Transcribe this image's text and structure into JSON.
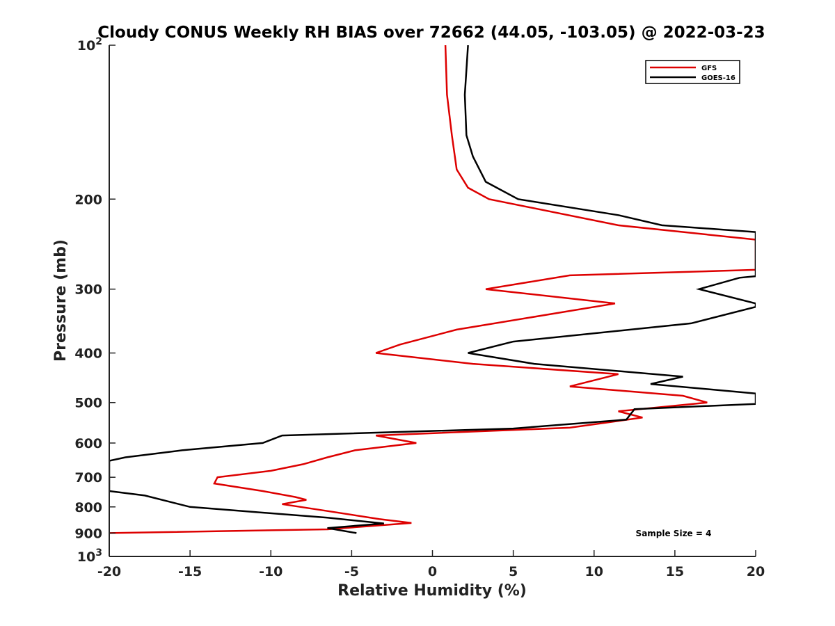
{
  "chart_data": {
    "type": "line",
    "title": "Cloudy CONUS Weekly RH BIAS over 72662 (44.05, -103.05) @ 2022-03-23",
    "xlabel": "Relative Humidity (%)",
    "ylabel": "Pressure (mb)",
    "xlim": [
      -20,
      20
    ],
    "ylim": [
      100,
      1000
    ],
    "y_scale": "log",
    "y_reversed": true,
    "grid": false,
    "legend_position": "top-right",
    "x_ticks": [
      {
        "value": -20,
        "label": "-20"
      },
      {
        "value": -15,
        "label": "-15"
      },
      {
        "value": -10,
        "label": "-10"
      },
      {
        "value": -5,
        "label": "-5"
      },
      {
        "value": 0,
        "label": "0"
      },
      {
        "value": 5,
        "label": "5"
      },
      {
        "value": 10,
        "label": "10"
      },
      {
        "value": 15,
        "label": "15"
      },
      {
        "value": 20,
        "label": "20"
      }
    ],
    "y_ticks": [
      {
        "value": 100,
        "base": "10",
        "exp": "2"
      },
      {
        "value": 200,
        "label": "200"
      },
      {
        "value": 300,
        "label": "300"
      },
      {
        "value": 400,
        "label": "400"
      },
      {
        "value": 500,
        "label": "500"
      },
      {
        "value": 600,
        "label": "600"
      },
      {
        "value": 700,
        "label": "700"
      },
      {
        "value": 800,
        "label": "800"
      },
      {
        "value": 900,
        "label": "900"
      },
      {
        "value": 1000,
        "base": "10",
        "exp": "3"
      }
    ],
    "series": [
      {
        "name": "GFS",
        "color": "#dd0000",
        "points": [
          [
            0.8,
            100
          ],
          [
            0.9,
            125
          ],
          [
            1.2,
            150
          ],
          [
            1.5,
            175
          ],
          [
            2.2,
            190
          ],
          [
            3.5,
            200
          ],
          [
            11.5,
            225
          ],
          [
            20,
            240
          ],
          [
            20,
            275
          ],
          [
            8.5,
            282
          ],
          [
            3.3,
            300
          ],
          [
            11.3,
            320
          ],
          [
            1.5,
            360
          ],
          [
            -2,
            385
          ],
          [
            -3.5,
            400
          ],
          [
            2.5,
            420
          ],
          [
            11.5,
            440
          ],
          [
            8.5,
            465
          ],
          [
            15.5,
            485
          ],
          [
            17,
            500
          ],
          [
            11.5,
            520
          ],
          [
            13,
            535
          ],
          [
            8.5,
            560
          ],
          [
            -3.5,
            580
          ],
          [
            -1,
            600
          ],
          [
            -4.8,
            620
          ],
          [
            -6.5,
            640
          ],
          [
            -8,
            660
          ],
          [
            -10,
            680
          ],
          [
            -13.3,
            700
          ],
          [
            -13.5,
            720
          ],
          [
            -10.5,
            745
          ],
          [
            -8.5,
            765
          ],
          [
            -7.8,
            775
          ],
          [
            -9.3,
            790
          ],
          [
            -6.5,
            815
          ],
          [
            -3.3,
            845
          ],
          [
            -1.3,
            860
          ],
          [
            -6.5,
            885
          ],
          [
            -20,
            900
          ]
        ]
      },
      {
        "name": "GOES-16",
        "color": "#000000",
        "points": [
          [
            2.2,
            100
          ],
          [
            2,
            125
          ],
          [
            2.1,
            150
          ],
          [
            2.5,
            165
          ],
          [
            3.3,
            185
          ],
          [
            5.3,
            200
          ],
          [
            11.5,
            215
          ],
          [
            14.2,
            225
          ],
          [
            20,
            232
          ],
          [
            20,
            283
          ],
          [
            19,
            285
          ],
          [
            16.5,
            300
          ],
          [
            20,
            320
          ],
          [
            20,
            325
          ],
          [
            16,
            350
          ],
          [
            5,
            380
          ],
          [
            2.2,
            400
          ],
          [
            6.3,
            420
          ],
          [
            15.5,
            445
          ],
          [
            13.5,
            460
          ],
          [
            20,
            480
          ],
          [
            20,
            503
          ],
          [
            12.5,
            515
          ],
          [
            12.3,
            525
          ],
          [
            12,
            540
          ],
          [
            5,
            562
          ],
          [
            -9.3,
            580
          ],
          [
            -10.5,
            600
          ],
          [
            -15.5,
            620
          ],
          [
            -19,
            640
          ],
          [
            -20,
            650
          ],
          [
            -20,
            745
          ],
          [
            -17.8,
            760
          ],
          [
            -15,
            800
          ],
          [
            -6.5,
            840
          ],
          [
            -3,
            862
          ],
          [
            -6.5,
            880
          ],
          [
            -4.7,
            900
          ]
        ]
      }
    ],
    "annotations": [
      {
        "text": "Sample Size = 4"
      }
    ]
  }
}
